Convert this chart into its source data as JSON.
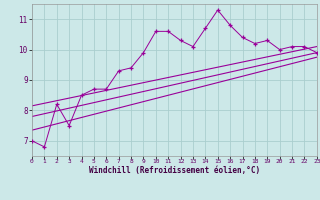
{
  "x": [
    0,
    1,
    2,
    3,
    4,
    5,
    6,
    7,
    8,
    9,
    10,
    11,
    12,
    13,
    14,
    15,
    16,
    17,
    18,
    19,
    20,
    21,
    22,
    23
  ],
  "y_jagged": [
    7.0,
    6.8,
    8.2,
    7.5,
    8.5,
    8.7,
    8.7,
    9.3,
    9.4,
    9.9,
    10.6,
    10.6,
    10.3,
    10.1,
    10.7,
    11.3,
    10.8,
    10.4,
    10.2,
    10.3,
    10.0,
    10.1,
    10.1,
    9.9
  ],
  "line1_pts": [
    [
      0,
      8.15
    ],
    [
      23,
      10.1
    ]
  ],
  "line2_pts": [
    [
      0,
      7.8
    ],
    [
      23,
      9.9
    ]
  ],
  "line3_pts": [
    [
      0,
      7.35
    ],
    [
      23,
      9.75
    ]
  ],
  "color": "#990099",
  "bg_color": "#cce8e8",
  "grid_color": "#aacece",
  "xlabel": "Windchill (Refroidissement éolien,°C)",
  "ylabel_ticks": [
    7,
    8,
    9,
    10,
    11
  ],
  "xlim": [
    0,
    23
  ],
  "ylim": [
    6.5,
    11.5
  ],
  "xticks": [
    0,
    1,
    2,
    3,
    4,
    5,
    6,
    7,
    8,
    9,
    10,
    11,
    12,
    13,
    14,
    15,
    16,
    17,
    18,
    19,
    20,
    21,
    22,
    23
  ]
}
